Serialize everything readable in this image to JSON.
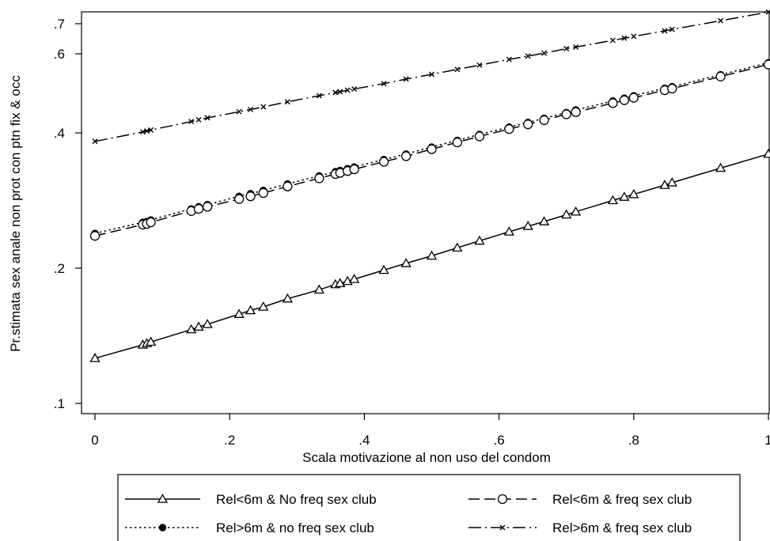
{
  "chart_data": {
    "type": "line",
    "xlabel": "Scala motivazione al non uso del condom",
    "ylabel": "Pr.stimata sex anale non prot con ptn fix & occ",
    "xlim": [
      0,
      1
    ],
    "ylim": [
      0.1,
      0.7
    ],
    "y_scale": "log",
    "x_ticks": [
      0,
      0.2,
      0.4,
      0.6,
      0.8,
      1
    ],
    "x_tick_labels": [
      "0",
      ".2",
      ".4",
      ".6",
      ".8",
      "1"
    ],
    "y_ticks": [
      0.1,
      0.2,
      0.4,
      0.6,
      0.7
    ],
    "y_tick_labels": [
      ".1",
      ".2",
      ".4",
      ".6",
      ".7"
    ],
    "grid": false,
    "legend_position": "bottom",
    "x": [
      0,
      0.071,
      0.077,
      0.083,
      0.143,
      0.154,
      0.167,
      0.214,
      0.231,
      0.25,
      0.286,
      0.333,
      0.357,
      0.364,
      0.375,
      0.385,
      0.429,
      0.462,
      0.5,
      0.538,
      0.571,
      0.615,
      0.643,
      0.667,
      0.7,
      0.714,
      0.769,
      0.786,
      0.8,
      0.846,
      0.857,
      0.929,
      1
    ],
    "series": [
      {
        "name": "Rel<6m & No freq sex club",
        "marker": "triangle",
        "dash": "solid",
        "values": [
          0.126,
          0.135,
          0.136,
          0.137,
          0.146,
          0.148,
          0.15,
          0.158,
          0.161,
          0.164,
          0.171,
          0.179,
          0.184,
          0.185,
          0.187,
          0.189,
          0.198,
          0.205,
          0.213,
          0.222,
          0.23,
          0.241,
          0.248,
          0.254,
          0.263,
          0.267,
          0.283,
          0.288,
          0.292,
          0.306,
          0.31,
          0.334,
          0.359
        ]
      },
      {
        "name": "Rel<6m & freq sex club",
        "marker": "hollow-circle",
        "dash": "dashed",
        "values": [
          0.236,
          0.25,
          0.251,
          0.253,
          0.268,
          0.271,
          0.274,
          0.285,
          0.289,
          0.294,
          0.304,
          0.317,
          0.324,
          0.326,
          0.329,
          0.332,
          0.345,
          0.355,
          0.368,
          0.381,
          0.393,
          0.408,
          0.418,
          0.427,
          0.44,
          0.445,
          0.466,
          0.473,
          0.479,
          0.498,
          0.502,
          0.534,
          0.568
        ]
      },
      {
        "name": "Rel>6m & no freq sex club",
        "marker": "filled-circle",
        "dash": "dotted",
        "values": [
          0.239,
          0.253,
          0.254,
          0.256,
          0.271,
          0.274,
          0.277,
          0.289,
          0.293,
          0.298,
          0.308,
          0.321,
          0.328,
          0.33,
          0.333,
          0.336,
          0.349,
          0.359,
          0.372,
          0.385,
          0.397,
          0.412,
          0.422,
          0.431,
          0.444,
          0.45,
          0.471,
          0.478,
          0.484,
          0.503,
          0.507,
          0.539,
          0.573
        ]
      },
      {
        "name": "Rel>6m & freq sex club",
        "marker": "x",
        "dash": "dash-dot",
        "values": [
          0.383,
          0.402,
          0.404,
          0.406,
          0.424,
          0.428,
          0.432,
          0.446,
          0.451,
          0.457,
          0.469,
          0.484,
          0.492,
          0.494,
          0.498,
          0.501,
          0.515,
          0.527,
          0.54,
          0.554,
          0.566,
          0.583,
          0.593,
          0.602,
          0.616,
          0.621,
          0.643,
          0.65,
          0.656,
          0.675,
          0.68,
          0.711,
          0.743
        ]
      }
    ]
  }
}
